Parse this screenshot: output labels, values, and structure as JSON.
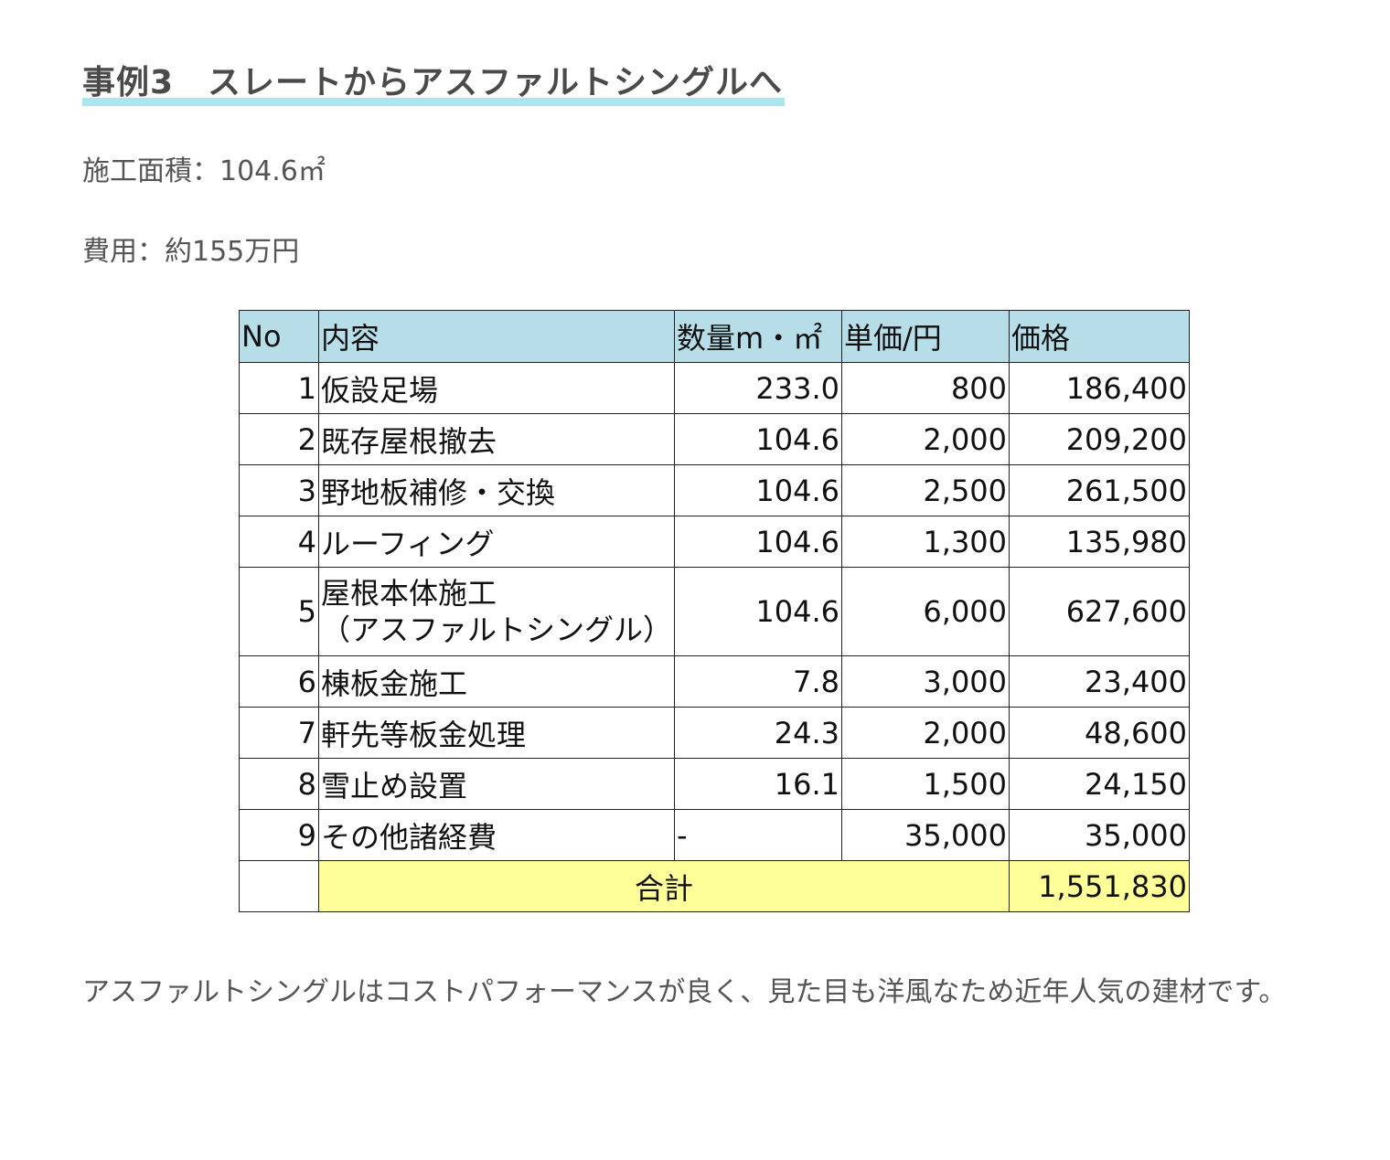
{
  "heading": "事例3　スレートからアスファルトシングルへ",
  "meta": {
    "area": "施工面積：104.6㎡",
    "cost": "費用：約155万円"
  },
  "table": {
    "headers": {
      "no": "No",
      "desc": "内容",
      "qty": "数量m・㎡",
      "unit": "単価/円",
      "price": "価格"
    },
    "rows": [
      {
        "no": "1",
        "desc": "仮設足場",
        "desc2": "",
        "qty": "233.0",
        "unit": "800",
        "price": "186,400"
      },
      {
        "no": "2",
        "desc": "既存屋根撤去",
        "desc2": "",
        "qty": "104.6",
        "unit": "2,000",
        "price": "209,200"
      },
      {
        "no": "3",
        "desc": "野地板補修・交換",
        "desc2": "",
        "qty": "104.6",
        "unit": "2,500",
        "price": "261,500"
      },
      {
        "no": "4",
        "desc": "ルーフィング",
        "desc2": "",
        "qty": "104.6",
        "unit": "1,300",
        "price": "135,980"
      },
      {
        "no": "5",
        "desc": "屋根本体施工",
        "desc2": "（アスファルトシングル）",
        "qty": "104.6",
        "unit": "6,000",
        "price": "627,600"
      },
      {
        "no": "6",
        "desc": "棟板金施工",
        "desc2": "",
        "qty": "7.8",
        "unit": "3,000",
        "price": "23,400"
      },
      {
        "no": "7",
        "desc": "軒先等板金処理",
        "desc2": "",
        "qty": "24.3",
        "unit": "2,000",
        "price": "48,600"
      },
      {
        "no": "8",
        "desc": "雪止め設置",
        "desc2": "",
        "qty": "16.1",
        "unit": "1,500",
        "price": "24,150"
      },
      {
        "no": "9",
        "desc": "その他諸経費",
        "desc2": "",
        "qty": "-",
        "unit": "35,000",
        "price": "35,000"
      }
    ],
    "total": {
      "label": "合計",
      "value": "1,551,830"
    }
  },
  "description": "アスファルトシングルはコストパフォーマンスが良く、見た目も洋風なため近年人気の建材です。",
  "colors": {
    "header_bg": "#b7dde8",
    "total_bg": "#ffff99",
    "heading_underline": "#a8e6f0"
  }
}
